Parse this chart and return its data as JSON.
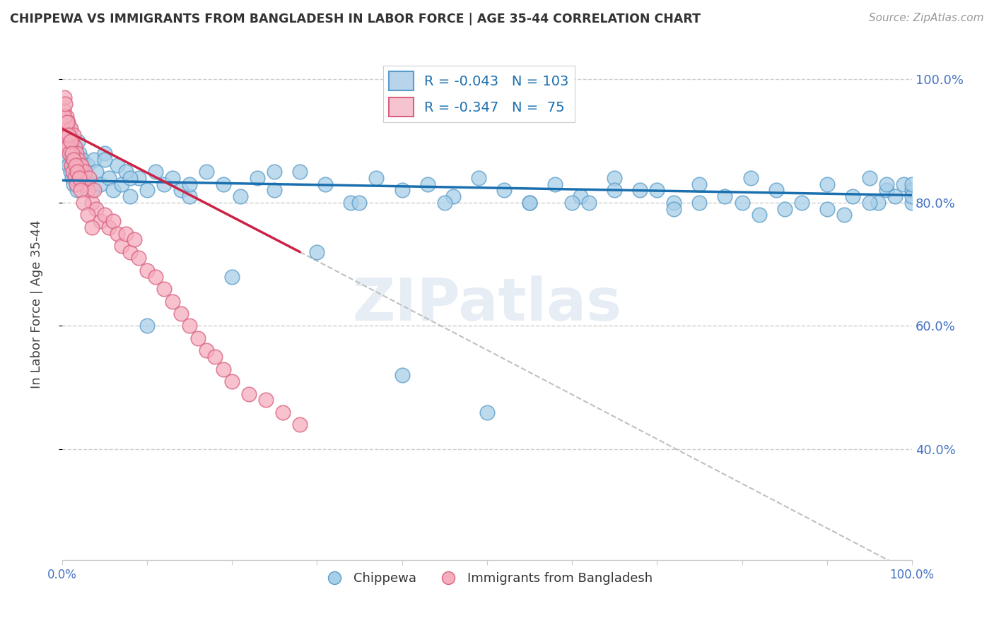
{
  "title": "CHIPPEWA VS IMMIGRANTS FROM BANGLADESH IN LABOR FORCE | AGE 35-44 CORRELATION CHART",
  "source": "Source: ZipAtlas.com",
  "ylabel": "In Labor Force | Age 35-44",
  "xlim": [
    0.0,
    1.0
  ],
  "ylim": [
    0.22,
    1.05
  ],
  "yticks": [
    0.4,
    0.6,
    0.8,
    1.0
  ],
  "ytick_labels": [
    "40.0%",
    "60.0%",
    "80.0%",
    "100.0%"
  ],
  "xticks": [
    0.0,
    0.1,
    0.2,
    0.3,
    0.4,
    0.5,
    0.6,
    0.7,
    0.8,
    0.9,
    1.0
  ],
  "xtick_labels_show": [
    "0.0%",
    "100.0%"
  ],
  "blue_color": "#a8cfe8",
  "blue_edge": "#5b9dc9",
  "pink_color": "#f5aebe",
  "pink_edge": "#d96080",
  "blue_line_color": "#1a6faf",
  "pink_line_color": "#cc2244",
  "watermark": "ZIPatlas",
  "background_color": "#ffffff",
  "grid_color": "#cccccc",
  "legend_blue_r": "-0.043",
  "legend_blue_n": "103",
  "legend_pink_r": "-0.347",
  "legend_pink_n": "75",
  "chippewa_x": [
    0.003,
    0.004,
    0.005,
    0.006,
    0.007,
    0.008,
    0.009,
    0.01,
    0.011,
    0.012,
    0.013,
    0.014,
    0.015,
    0.016,
    0.017,
    0.018,
    0.019,
    0.02,
    0.022,
    0.024,
    0.026,
    0.028,
    0.03,
    0.032,
    0.035,
    0.038,
    0.04,
    0.045,
    0.05,
    0.055,
    0.06,
    0.065,
    0.07,
    0.075,
    0.08,
    0.09,
    0.1,
    0.11,
    0.12,
    0.13,
    0.14,
    0.15,
    0.17,
    0.19,
    0.21,
    0.23,
    0.25,
    0.28,
    0.31,
    0.34,
    0.37,
    0.4,
    0.43,
    0.46,
    0.49,
    0.52,
    0.55,
    0.58,
    0.61,
    0.65,
    0.68,
    0.72,
    0.75,
    0.78,
    0.81,
    0.84,
    0.87,
    0.9,
    0.93,
    0.95,
    0.97,
    0.98,
    0.99,
    1.0,
    1.0,
    1.0,
    1.0,
    0.1,
    0.2,
    0.3,
    0.4,
    0.5,
    0.6,
    0.7,
    0.8,
    0.9,
    0.96,
    0.97,
    0.15,
    0.25,
    0.35,
    0.45,
    0.55,
    0.65,
    0.75,
    0.85,
    0.95,
    0.05,
    0.08,
    0.62,
    0.72,
    0.82,
    0.92
  ],
  "chippewa_y": [
    0.9,
    0.88,
    0.91,
    0.87,
    0.89,
    0.86,
    0.92,
    0.85,
    0.88,
    0.84,
    0.87,
    0.83,
    0.89,
    0.85,
    0.86,
    0.82,
    0.9,
    0.88,
    0.85,
    0.87,
    0.84,
    0.83,
    0.86,
    0.84,
    0.82,
    0.87,
    0.85,
    0.83,
    0.88,
    0.84,
    0.82,
    0.86,
    0.83,
    0.85,
    0.81,
    0.84,
    0.82,
    0.85,
    0.83,
    0.84,
    0.82,
    0.81,
    0.85,
    0.83,
    0.81,
    0.84,
    0.82,
    0.85,
    0.83,
    0.8,
    0.84,
    0.82,
    0.83,
    0.81,
    0.84,
    0.82,
    0.8,
    0.83,
    0.81,
    0.84,
    0.82,
    0.8,
    0.83,
    0.81,
    0.84,
    0.82,
    0.8,
    0.83,
    0.81,
    0.84,
    0.82,
    0.81,
    0.83,
    0.8,
    0.82,
    0.81,
    0.83,
    0.6,
    0.68,
    0.72,
    0.52,
    0.46,
    0.8,
    0.82,
    0.8,
    0.79,
    0.8,
    0.83,
    0.83,
    0.85,
    0.8,
    0.8,
    0.8,
    0.82,
    0.8,
    0.79,
    0.8,
    0.87,
    0.84,
    0.8,
    0.79,
    0.78,
    0.78
  ],
  "bangladesh_x": [
    0.002,
    0.003,
    0.004,
    0.005,
    0.006,
    0.007,
    0.008,
    0.009,
    0.01,
    0.011,
    0.012,
    0.013,
    0.014,
    0.015,
    0.016,
    0.017,
    0.018,
    0.019,
    0.02,
    0.021,
    0.022,
    0.023,
    0.025,
    0.027,
    0.03,
    0.032,
    0.035,
    0.038,
    0.04,
    0.045,
    0.05,
    0.055,
    0.06,
    0.065,
    0.07,
    0.075,
    0.08,
    0.085,
    0.09,
    0.1,
    0.11,
    0.12,
    0.13,
    0.14,
    0.15,
    0.16,
    0.17,
    0.18,
    0.19,
    0.2,
    0.22,
    0.24,
    0.26,
    0.28,
    0.003,
    0.004,
    0.005,
    0.006,
    0.007,
    0.008,
    0.009,
    0.01,
    0.011,
    0.012,
    0.013,
    0.014,
    0.015,
    0.016,
    0.017,
    0.018,
    0.02,
    0.022,
    0.025,
    0.03,
    0.035
  ],
  "bangladesh_y": [
    0.95,
    0.97,
    0.92,
    0.94,
    0.9,
    0.93,
    0.89,
    0.91,
    0.92,
    0.88,
    0.9,
    0.87,
    0.91,
    0.89,
    0.86,
    0.88,
    0.85,
    0.87,
    0.86,
    0.84,
    0.85,
    0.86,
    0.83,
    0.85,
    0.82,
    0.84,
    0.8,
    0.82,
    0.79,
    0.77,
    0.78,
    0.76,
    0.77,
    0.75,
    0.73,
    0.75,
    0.72,
    0.74,
    0.71,
    0.69,
    0.68,
    0.66,
    0.64,
    0.62,
    0.6,
    0.58,
    0.56,
    0.55,
    0.53,
    0.51,
    0.49,
    0.48,
    0.46,
    0.44,
    0.94,
    0.96,
    0.91,
    0.93,
    0.89,
    0.91,
    0.88,
    0.9,
    0.86,
    0.88,
    0.85,
    0.87,
    0.84,
    0.86,
    0.83,
    0.85,
    0.84,
    0.82,
    0.8,
    0.78,
    0.76
  ],
  "blue_trend": [
    0.0,
    1.0,
    0.836,
    0.812
  ],
  "pink_trend_solid": [
    0.0,
    0.28,
    0.92,
    0.72
  ],
  "pink_trend_dash": [
    0.28,
    1.0,
    0.72,
    0.2
  ]
}
